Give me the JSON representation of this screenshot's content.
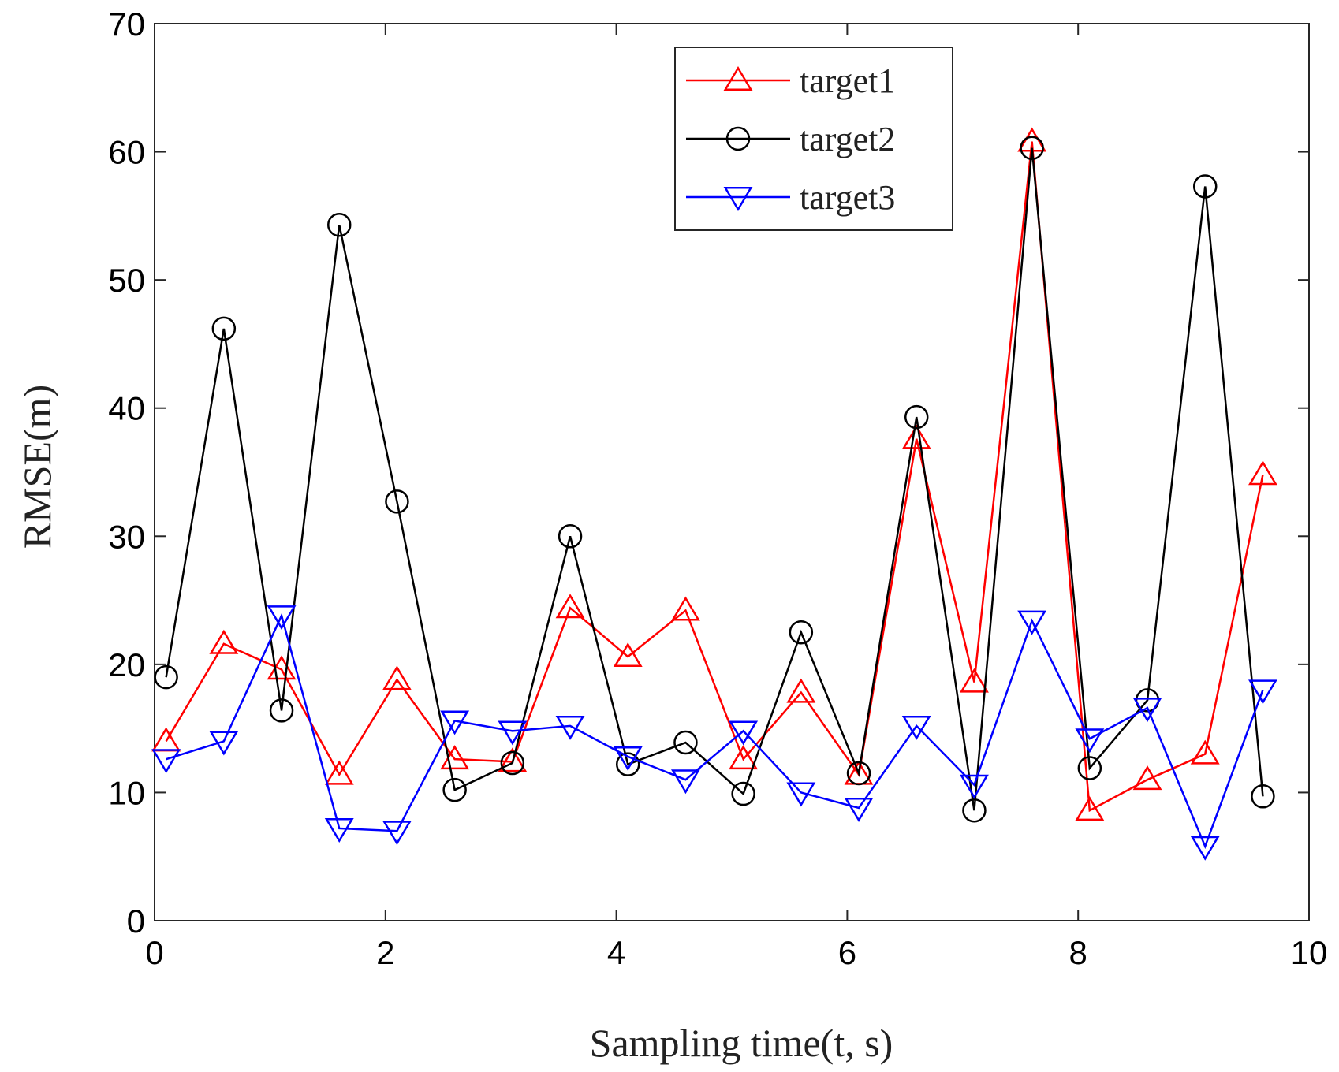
{
  "chart_data": {
    "type": "line",
    "title": "",
    "xlabel": "Sampling time(t, s)",
    "ylabel": "RMSE(m)",
    "xlim": [
      0,
      10
    ],
    "ylim": [
      0,
      70
    ],
    "xticks": [
      0,
      2,
      4,
      6,
      8,
      10
    ],
    "yticks": [
      0,
      10,
      20,
      30,
      40,
      50,
      60,
      70
    ],
    "x": [
      0.1,
      0.6,
      1.1,
      1.6,
      2.1,
      2.6,
      3.1,
      3.6,
      4.1,
      4.6,
      5.1,
      5.6,
      6.1,
      6.6,
      7.1,
      7.6,
      8.1,
      8.6,
      9.1,
      9.6
    ],
    "legend_position": "top-right",
    "series": [
      {
        "name": "target1",
        "color": "#ff0000",
        "marker": "triangle-up",
        "values": [
          14,
          21.6,
          19.6,
          11.4,
          18.8,
          12.6,
          12.4,
          24.4,
          20.6,
          24.2,
          12.6,
          17.8,
          11.4,
          37.6,
          18.6,
          60.8,
          8.6,
          11,
          13,
          34.8
        ]
      },
      {
        "name": "target2",
        "color": "#000000",
        "marker": "circle",
        "values": [
          19,
          46.2,
          16.4,
          54.3,
          32.7,
          10.2,
          12.3,
          30,
          12.2,
          13.9,
          9.9,
          22.5,
          11.5,
          39.3,
          8.6,
          60.3,
          11.9,
          17.2,
          57.3,
          9.7
        ]
      },
      {
        "name": "target3",
        "color": "#0000ff",
        "marker": "triangle-down",
        "values": [
          12.6,
          14,
          23.8,
          7.2,
          7,
          15.6,
          14.8,
          15.2,
          12.8,
          11,
          14.8,
          10,
          8.8,
          15.2,
          10.6,
          23.4,
          14.2,
          16.6,
          5.8,
          18
        ]
      }
    ]
  }
}
